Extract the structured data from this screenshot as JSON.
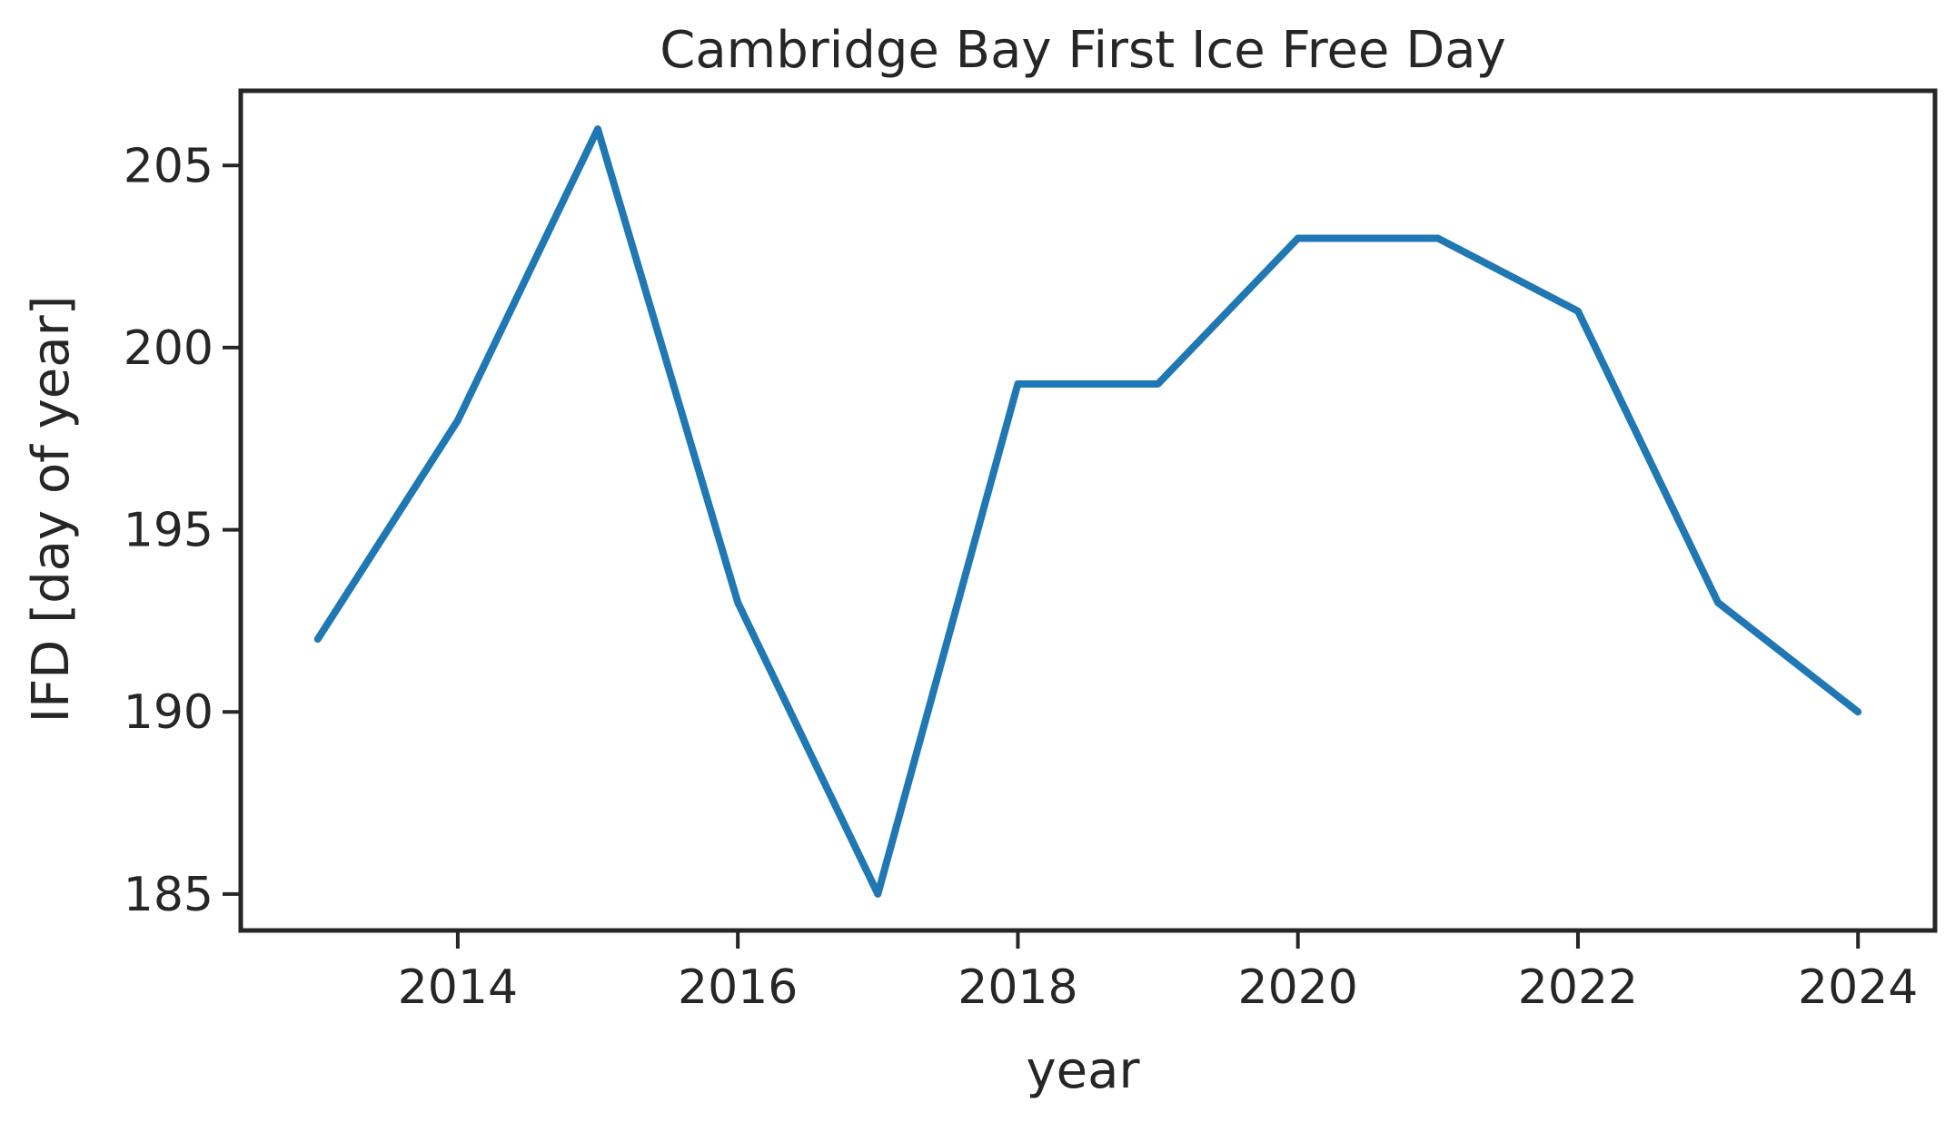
{
  "chart_data": {
    "type": "line",
    "title": "Cambridge Bay First Ice Free Day",
    "xlabel": "year",
    "ylabel": "IFD [day of year]",
    "xlim": [
      2012.45,
      2024.55
    ],
    "ylim": [
      184,
      207.05
    ],
    "xticks": [
      2014,
      2016,
      2018,
      2020,
      2022,
      2024
    ],
    "yticks": [
      185,
      190,
      195,
      200,
      205
    ],
    "grid": false,
    "series": [
      {
        "color": "#1f77b4",
        "x": [
          2013,
          2014,
          2015,
          2016,
          2017,
          2018,
          2019,
          2020,
          2021,
          2022,
          2023,
          2024
        ],
        "y": [
          192,
          198,
          206,
          193,
          185,
          199,
          199,
          203,
          203,
          201,
          193,
          190
        ]
      }
    ]
  }
}
